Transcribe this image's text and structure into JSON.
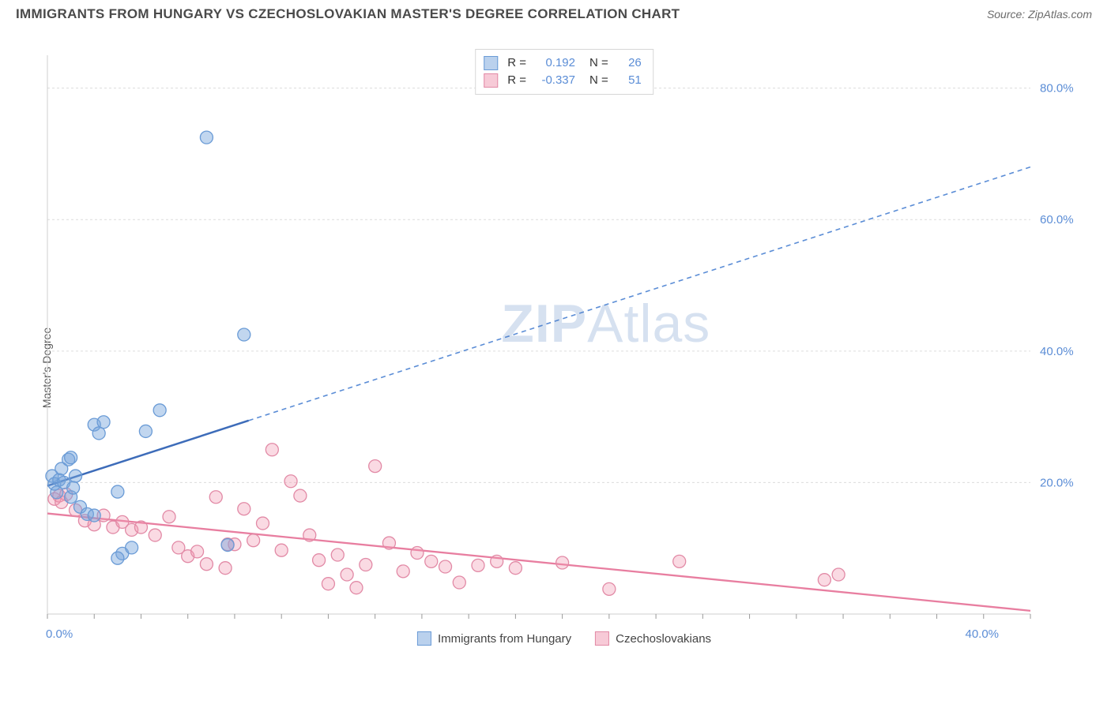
{
  "title": "IMMIGRANTS FROM HUNGARY VS CZECHOSLOVAKIAN MASTER'S DEGREE CORRELATION CHART",
  "source_label": "Source: ZipAtlas.com",
  "y_axis_label": "Master's Degree",
  "watermark": {
    "bold": "ZIP",
    "rest": "Atlas"
  },
  "chart": {
    "type": "scatter",
    "background_color": "#ffffff",
    "grid_color": "#dcdcdc",
    "axis_color": "#cfcfcf",
    "tick_label_color": "#5b8dd6",
    "x": {
      "min": 0,
      "max": 42,
      "ticks": [
        0,
        40
      ],
      "tick_labels": [
        "0.0%",
        "40.0%"
      ],
      "minor_tick_step": 2
    },
    "y": {
      "min": 0,
      "max": 85,
      "ticks": [
        20,
        40,
        60,
        80
      ],
      "tick_labels": [
        "20.0%",
        "40.0%",
        "60.0%",
        "80.0%"
      ]
    },
    "marker_radius": 8,
    "series": [
      {
        "name": "Immigrants from Hungary",
        "color_fill": "rgba(118,163,220,0.45)",
        "color_stroke": "#6a9bd6",
        "R": "0.192",
        "N": "26",
        "trend": {
          "y_at_x0": 19.5,
          "y_at_xmax": 68,
          "solid_until_x": 8.6,
          "solid_color": "#3d6cb9",
          "dash_color": "#5b8dd6"
        },
        "points": [
          [
            0.2,
            21
          ],
          [
            0.3,
            19.8
          ],
          [
            0.4,
            18.5
          ],
          [
            0.5,
            20.4
          ],
          [
            0.6,
            22.1
          ],
          [
            0.7,
            20.0
          ],
          [
            1.0,
            17.8
          ],
          [
            1.1,
            19.2
          ],
          [
            1.2,
            21.0
          ],
          [
            1.4,
            16.3
          ],
          [
            1.7,
            15.2
          ],
          [
            2.0,
            28.8
          ],
          [
            2.2,
            27.5
          ],
          [
            2.4,
            29.2
          ],
          [
            0.9,
            23.5
          ],
          [
            1.0,
            23.8
          ],
          [
            3.0,
            18.6
          ],
          [
            3.2,
            9.2
          ],
          [
            4.8,
            31.0
          ],
          [
            4.2,
            27.8
          ],
          [
            6.8,
            72.5
          ],
          [
            8.4,
            42.5
          ],
          [
            7.7,
            10.5
          ],
          [
            3.0,
            8.5
          ],
          [
            2.0,
            15.0
          ],
          [
            3.6,
            10.1
          ]
        ]
      },
      {
        "name": "Czechoslovakians",
        "color_fill": "rgba(240,150,175,0.35)",
        "color_stroke": "#e28aa6",
        "R": "-0.337",
        "N": "51",
        "trend": {
          "y_at_x0": 15.3,
          "y_at_xmax": 0.5,
          "solid_color": "#e87ea0"
        },
        "points": [
          [
            0.3,
            17.5
          ],
          [
            0.5,
            18.0
          ],
          [
            0.6,
            17.0
          ],
          [
            0.8,
            18.2
          ],
          [
            1.2,
            15.8
          ],
          [
            1.6,
            14.2
          ],
          [
            2.0,
            13.6
          ],
          [
            2.4,
            15.0
          ],
          [
            2.8,
            13.2
          ],
          [
            3.2,
            14.0
          ],
          [
            3.6,
            12.8
          ],
          [
            4.0,
            13.2
          ],
          [
            4.6,
            12.0
          ],
          [
            5.2,
            14.8
          ],
          [
            5.6,
            10.1
          ],
          [
            6.0,
            8.8
          ],
          [
            6.4,
            9.5
          ],
          [
            6.8,
            7.6
          ],
          [
            7.2,
            17.8
          ],
          [
            7.6,
            7.0
          ],
          [
            8.0,
            10.6
          ],
          [
            8.4,
            16.0
          ],
          [
            8.8,
            11.2
          ],
          [
            9.2,
            13.8
          ],
          [
            9.6,
            25.0
          ],
          [
            10.0,
            9.7
          ],
          [
            10.4,
            20.2
          ],
          [
            10.8,
            18.0
          ],
          [
            11.2,
            12.0
          ],
          [
            11.6,
            8.2
          ],
          [
            12.0,
            4.6
          ],
          [
            12.4,
            9.0
          ],
          [
            12.8,
            6.0
          ],
          [
            13.2,
            4.0
          ],
          [
            13.6,
            7.5
          ],
          [
            14.0,
            22.5
          ],
          [
            14.6,
            10.8
          ],
          [
            15.2,
            6.5
          ],
          [
            15.8,
            9.3
          ],
          [
            16.4,
            8.0
          ],
          [
            17.0,
            7.2
          ],
          [
            17.6,
            4.8
          ],
          [
            18.4,
            7.4
          ],
          [
            19.2,
            8.0
          ],
          [
            20.0,
            7.0
          ],
          [
            22.0,
            7.8
          ],
          [
            24.0,
            3.8
          ],
          [
            27.0,
            8.0
          ],
          [
            33.2,
            5.2
          ],
          [
            33.8,
            6.0
          ],
          [
            7.7,
            10.6
          ]
        ]
      }
    ],
    "legend_top": {
      "rows": [
        {
          "swatch": "blue",
          "R_label": "R =",
          "R_value": "0.192",
          "N_label": "N =",
          "N_value": "26"
        },
        {
          "swatch": "pink",
          "R_label": "R =",
          "R_value": "-0.337",
          "N_label": "N =",
          "N_value": "51"
        }
      ]
    },
    "legend_bottom": {
      "items": [
        {
          "swatch": "blue",
          "label": "Immigrants from Hungary"
        },
        {
          "swatch": "pink",
          "label": "Czechoslovakians"
        }
      ]
    }
  }
}
